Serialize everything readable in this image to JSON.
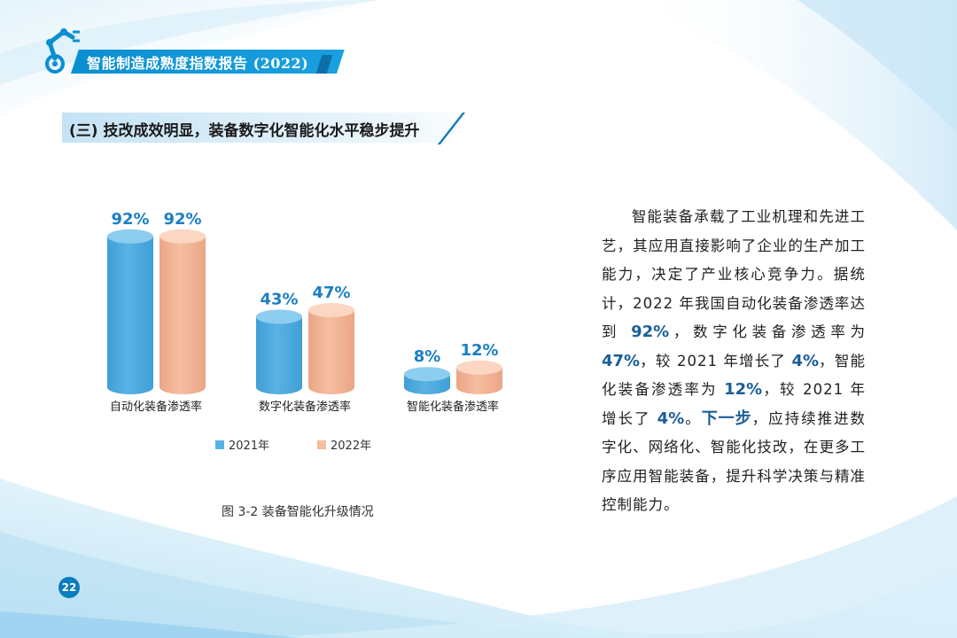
{
  "header": {
    "title": "智能制造成熟度指数报告 (2022)"
  },
  "section": {
    "heading": "(三) 技改成效明显，装备数字化智能化水平稳步提升"
  },
  "figure": {
    "caption": "图 3-2 装备智能化升级情况"
  },
  "body": {
    "s1": "智能装备承载了工业机理和先进工艺，其应用直接影响了企业的生产加工能力，决定了产业核心竞争力。据统计，2022 年我国自动化装备渗透率达到 ",
    "h1": "92%",
    "s2": "，数字化装备渗透率为 ",
    "h2": "47%",
    "s3": "，较 2021 年增长了 ",
    "h3": "4%",
    "s4": "，智能化装备渗透率为 ",
    "h4": "12%",
    "s5": "，较 2021 年增长了 ",
    "h5": "4%",
    "s6": "。",
    "h6": "下一步",
    "s7": "，应持续推进数字化、网络化、智能化技改，在更多工序应用智能装备，提升科学决策与精准控制能力。"
  },
  "page_number": "22",
  "colors": {
    "brand_blue": "#0a8fd0",
    "series_2021": "#5ab2e4",
    "series_2022": "#f6bea1",
    "value_label": "#1a7fc4"
  },
  "chart_data": {
    "type": "bar",
    "categories": [
      "自动化装备渗透率",
      "数字化装备渗透率",
      "智能化装备渗透率"
    ],
    "series": [
      {
        "name": "2021年",
        "values": [
          92,
          43,
          8
        ],
        "labels": [
          "92%",
          "43%",
          "8%"
        ],
        "color": "#5ab2e4"
      },
      {
        "name": "2022年",
        "values": [
          92,
          47,
          12
        ],
        "labels": [
          "92%",
          "47%",
          "12%"
        ],
        "color": "#f6bea1"
      }
    ],
    "ylim": [
      0,
      100
    ],
    "legend_position": "bottom",
    "grid": false,
    "style": "3d-cylinder"
  }
}
